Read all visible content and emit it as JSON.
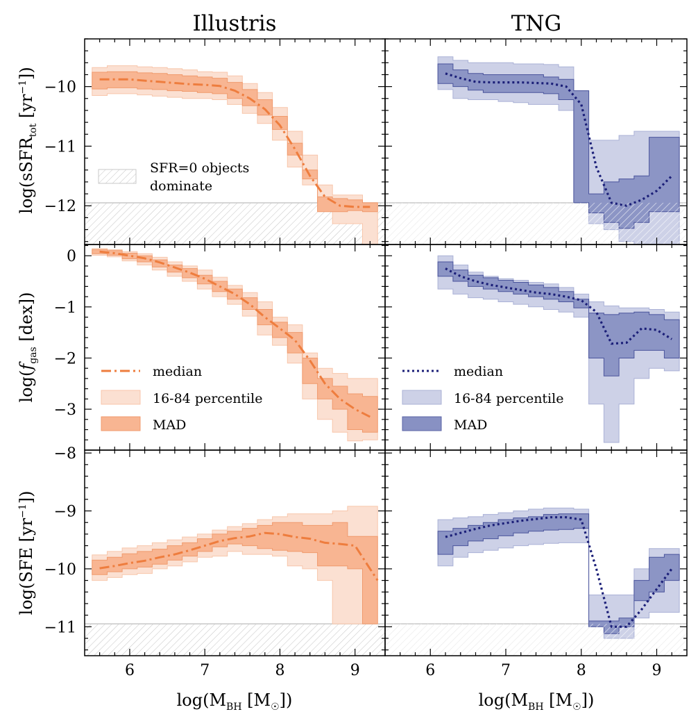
{
  "colors": {
    "illustris_line": "#ee7d3e",
    "illustris_band": "#fbe0d2",
    "illustris_mad": "#f8b592",
    "tng_line": "#1b1f78",
    "tng_band": "#cdd1e7",
    "tng_mad": "#8891c3",
    "hatch": "#c8c8c8"
  },
  "columns": {
    "left_title": "Illustris",
    "right_title": "TNG"
  },
  "axes": {
    "xlim": [
      5.4,
      9.4
    ],
    "xticks": [
      "6",
      "7",
      "8",
      "9"
    ],
    "xlabel": {
      "main": "log(M",
      "sub": "BH",
      "rest": " [M",
      "sun": "☉",
      "end": "])"
    },
    "row1": {
      "ylim": [
        -12.65,
        -9.2
      ],
      "yticks": [
        "−10",
        "−11",
        "−12"
      ],
      "ylabel": {
        "main": "log(sSFR",
        "sub": "tot",
        "rest": " [yr",
        "sup": "−1",
        "end": "])"
      }
    },
    "row2": {
      "ylim": [
        -3.8,
        0.22
      ],
      "yticks": [
        "0",
        "−1",
        "−2",
        "−3"
      ],
      "ylabel": {
        "main": "log(",
        "italic": "f",
        "sub": "gas",
        "rest": " [dex])"
      }
    },
    "row3": {
      "ylim": [
        -11.5,
        -7.95
      ],
      "yticks": [
        "−8",
        "−9",
        "−10",
        "−11"
      ],
      "ylabel": {
        "main": "log(SFE [yr",
        "sup": "−1",
        "end": "])"
      }
    }
  },
  "legends": {
    "hatch_label_line1": "SFR=0 objects",
    "hatch_label_line2": "dominate",
    "median": "median",
    "percentile": "16-84 percentile",
    "mad": "MAD"
  },
  "chart_data": [
    {
      "type": "area",
      "panel": "Illustris sSFR",
      "row": "row1",
      "side": "left",
      "style": "dashdot",
      "hatch_below": -11.95,
      "bins": [
        5.5,
        5.7,
        5.9,
        6.1,
        6.3,
        6.5,
        6.7,
        6.9,
        7.1,
        7.3,
        7.5,
        7.7,
        7.9,
        8.1,
        8.3,
        8.5,
        8.7,
        8.9,
        9.1,
        9.3
      ],
      "p16": [
        -10.15,
        -10.12,
        -10.12,
        -10.14,
        -10.16,
        -10.18,
        -10.2,
        -10.2,
        -10.22,
        -10.3,
        -10.45,
        -10.62,
        -10.9,
        -11.35,
        -11.65,
        -11.95,
        -12.3,
        -12.3,
        -12.65
      ],
      "p84": [
        -9.68,
        -9.65,
        -9.65,
        -9.67,
        -9.68,
        -9.7,
        -9.72,
        -9.75,
        -9.76,
        -9.82,
        -9.95,
        -10.1,
        -10.35,
        -10.75,
        -11.15,
        -11.65,
        -11.82,
        -11.82,
        -11.95
      ],
      "mad_lo": [
        -10.04,
        -10.02,
        -10.02,
        -10.04,
        -10.05,
        -10.07,
        -10.08,
        -10.1,
        -10.12,
        -10.2,
        -10.32,
        -10.48,
        -10.72,
        -11.15,
        -11.55,
        -12.1,
        -12.1,
        -12.08,
        -12.1
      ],
      "mad_hi": [
        -9.76,
        -9.75,
        -9.75,
        -9.77,
        -9.78,
        -9.8,
        -9.82,
        -9.84,
        -9.86,
        -9.93,
        -10.05,
        -10.22,
        -10.5,
        -10.95,
        -11.4,
        -11.85,
        -11.88,
        -11.9,
        -11.95
      ],
      "median_x": [
        5.6,
        5.8,
        6.0,
        6.2,
        6.4,
        6.6,
        6.8,
        7.0,
        7.2,
        7.4,
        7.6,
        7.8,
        8.0,
        8.2,
        8.4,
        8.6,
        8.8,
        9.0,
        9.2
      ],
      "median_y": [
        -9.88,
        -9.88,
        -9.88,
        -9.9,
        -9.92,
        -9.94,
        -9.96,
        -9.97,
        -9.99,
        -10.07,
        -10.2,
        -10.38,
        -10.65,
        -11.05,
        -11.5,
        -11.85,
        -12.0,
        -12.02,
        -12.02
      ]
    },
    {
      "type": "area",
      "panel": "TNG sSFR",
      "row": "row1",
      "side": "right",
      "style": "dotted",
      "hatch_below": -11.95,
      "bins": [
        6.1,
        6.3,
        6.5,
        6.7,
        6.9,
        7.1,
        7.3,
        7.5,
        7.7,
        7.9,
        8.1,
        8.3,
        8.5,
        8.7,
        8.9,
        9.1,
        9.3
      ],
      "p16": [
        -10.05,
        -10.2,
        -10.22,
        -10.22,
        -10.25,
        -10.27,
        -10.3,
        -10.3,
        -10.4,
        -11.95,
        -12.3,
        -12.4,
        -12.6,
        -12.72,
        -12.72,
        -12.72
      ],
      "p84": [
        -9.5,
        -9.56,
        -9.6,
        -9.6,
        -9.6,
        -9.62,
        -9.62,
        -9.63,
        -9.67,
        -10.07,
        -10.9,
        -10.9,
        -10.82,
        -10.75,
        -10.75,
        -10.75
      ],
      "mad_lo": [
        -9.95,
        -10.0,
        -10.06,
        -10.1,
        -10.1,
        -10.1,
        -10.1,
        -10.12,
        -10.22,
        -11.95,
        -12.12,
        -12.28,
        -12.38,
        -12.28,
        -12.1,
        -12.1
      ],
      "mad_hi": [
        -9.62,
        -9.72,
        -9.78,
        -9.8,
        -9.8,
        -9.8,
        -9.8,
        -9.84,
        -9.88,
        -10.07,
        -11.8,
        -11.6,
        -11.55,
        -11.5,
        -10.85,
        -10.85
      ],
      "median_x": [
        6.2,
        6.4,
        6.6,
        6.8,
        7.0,
        7.2,
        7.4,
        7.6,
        7.8,
        8.0,
        8.2,
        8.4,
        8.6,
        8.8,
        9.0,
        9.2
      ],
      "median_y": [
        -9.78,
        -9.86,
        -9.92,
        -9.93,
        -9.93,
        -9.93,
        -9.94,
        -9.95,
        -10.0,
        -10.3,
        -11.35,
        -11.95,
        -12.0,
        -11.9,
        -11.75,
        -11.5
      ]
    },
    {
      "type": "area",
      "panel": "Illustris f_gas",
      "row": "row2",
      "side": "left",
      "style": "dashdot",
      "bins": [
        5.5,
        5.7,
        5.9,
        6.1,
        6.3,
        6.5,
        6.7,
        6.9,
        7.1,
        7.3,
        7.5,
        7.7,
        7.9,
        8.1,
        8.3,
        8.5,
        8.7,
        8.9,
        9.1,
        9.3
      ],
      "p16": [
        0.01,
        -0.02,
        -0.1,
        -0.18,
        -0.28,
        -0.4,
        -0.5,
        -0.65,
        -0.8,
        -0.95,
        -1.18,
        -1.55,
        -1.75,
        -2.1,
        -2.8,
        -3.2,
        -3.45,
        -3.62,
        -3.6
      ],
      "p84": [
        0.14,
        0.12,
        0.08,
        0.04,
        -0.03,
        -0.12,
        -0.2,
        -0.28,
        -0.42,
        -0.58,
        -0.72,
        -0.9,
        -1.2,
        -1.35,
        -1.9,
        -2.2,
        -2.3,
        -2.4,
        -2.4
      ],
      "mad_lo": [
        0.04,
        0.01,
        -0.06,
        -0.12,
        -0.22,
        -0.32,
        -0.43,
        -0.55,
        -0.7,
        -0.85,
        -1.05,
        -1.35,
        -1.6,
        -1.9,
        -2.5,
        -2.8,
        -3.0,
        -3.4,
        -3.45
      ],
      "mad_hi": [
        0.12,
        0.1,
        0.05,
        0.0,
        -0.08,
        -0.18,
        -0.25,
        -0.38,
        -0.5,
        -0.65,
        -0.82,
        -1.05,
        -1.3,
        -1.5,
        -2.0,
        -2.4,
        -2.55,
        -2.7,
        -2.75
      ],
      "median_x": [
        5.6,
        5.8,
        6.0,
        6.2,
        6.4,
        6.6,
        6.8,
        7.0,
        7.2,
        7.4,
        7.6,
        7.8,
        8.0,
        8.2,
        8.4,
        8.6,
        8.8,
        9.0,
        9.2
      ],
      "median_y": [
        0.08,
        0.05,
        0.0,
        -0.05,
        -0.13,
        -0.23,
        -0.33,
        -0.45,
        -0.6,
        -0.75,
        -0.95,
        -1.2,
        -1.42,
        -1.65,
        -2.05,
        -2.5,
        -2.8,
        -3.0,
        -3.15
      ]
    },
    {
      "type": "area",
      "panel": "TNG f_gas",
      "row": "row2",
      "side": "right",
      "style": "dotted",
      "bins": [
        6.1,
        6.3,
        6.5,
        6.7,
        6.9,
        7.1,
        7.3,
        7.5,
        7.7,
        7.9,
        8.1,
        8.3,
        8.5,
        8.7,
        8.9,
        9.1,
        9.3
      ],
      "p16": [
        -0.65,
        -0.75,
        -0.82,
        -0.85,
        -0.9,
        -0.95,
        -1.0,
        -1.05,
        -1.1,
        -1.2,
        -2.9,
        -3.65,
        -2.9,
        -2.4,
        -2.2,
        -2.25
      ],
      "p84": [
        0.0,
        -0.18,
        -0.32,
        -0.4,
        -0.45,
        -0.48,
        -0.52,
        -0.55,
        -0.62,
        -0.75,
        -0.9,
        -0.98,
        -1.02,
        -1.02,
        -1.05,
        -1.1
      ],
      "mad_lo": [
        -0.4,
        -0.5,
        -0.6,
        -0.65,
        -0.7,
        -0.75,
        -0.8,
        -0.85,
        -0.9,
        -1.02,
        -2.0,
        -2.35,
        -2.0,
        -1.85,
        -1.85,
        -2.0
      ],
      "mad_hi": [
        -0.12,
        -0.28,
        -0.38,
        -0.43,
        -0.48,
        -0.52,
        -0.57,
        -0.62,
        -0.7,
        -0.85,
        -1.12,
        -1.15,
        -1.12,
        -1.1,
        -1.15,
        -1.25
      ],
      "median_x": [
        6.2,
        6.4,
        6.6,
        6.8,
        7.0,
        7.2,
        7.4,
        7.6,
        7.8,
        8.0,
        8.2,
        8.4,
        8.6,
        8.8,
        9.0,
        9.2
      ],
      "median_y": [
        -0.25,
        -0.4,
        -0.5,
        -0.57,
        -0.62,
        -0.67,
        -0.72,
        -0.75,
        -0.8,
        -0.87,
        -1.1,
        -1.72,
        -1.7,
        -1.42,
        -1.45,
        -1.63
      ]
    },
    {
      "type": "area",
      "panel": "Illustris SFE",
      "row": "row3",
      "side": "left",
      "style": "dashdot",
      "hatch_below": -10.95,
      "bins": [
        5.5,
        5.7,
        5.9,
        6.1,
        6.3,
        6.5,
        6.7,
        6.9,
        7.1,
        7.3,
        7.5,
        7.7,
        7.9,
        8.1,
        8.3,
        8.5,
        8.7,
        8.9,
        9.1,
        9.3
      ],
      "p16": [
        -10.2,
        -10.15,
        -10.1,
        -10.08,
        -10.0,
        -9.95,
        -9.88,
        -9.8,
        -9.78,
        -9.7,
        -9.75,
        -9.75,
        -9.78,
        -9.95,
        -10.0,
        -10.2,
        -10.95,
        -10.95,
        -10.95
      ],
      "p84": [
        -9.76,
        -9.7,
        -9.64,
        -9.6,
        -9.55,
        -9.5,
        -9.45,
        -9.4,
        -9.33,
        -9.27,
        -9.22,
        -9.15,
        -9.1,
        -9.05,
        -9.05,
        -9.05,
        -9.0,
        -8.92,
        -8.92
      ],
      "mad_lo": [
        -10.1,
        -10.05,
        -10.0,
        -9.97,
        -9.92,
        -9.85,
        -9.78,
        -9.7,
        -9.62,
        -9.57,
        -9.6,
        -9.65,
        -9.68,
        -9.7,
        -9.72,
        -9.95,
        -9.95,
        -10.0,
        -10.95
      ],
      "mad_hi": [
        -9.85,
        -9.8,
        -9.74,
        -9.7,
        -9.66,
        -9.6,
        -9.55,
        -9.48,
        -9.4,
        -9.35,
        -9.3,
        -9.25,
        -9.2,
        -9.2,
        -9.25,
        -9.25,
        -9.2,
        -9.44,
        -9.44
      ],
      "median_x": [
        5.6,
        5.8,
        6.0,
        6.2,
        6.4,
        6.6,
        6.8,
        7.0,
        7.2,
        7.4,
        7.6,
        7.8,
        8.0,
        8.2,
        8.4,
        8.6,
        8.8,
        9.0,
        9.2,
        9.3
      ],
      "median_y": [
        -9.99,
        -9.95,
        -9.9,
        -9.86,
        -9.8,
        -9.75,
        -9.68,
        -9.6,
        -9.52,
        -9.47,
        -9.44,
        -9.38,
        -9.4,
        -9.45,
        -9.48,
        -9.55,
        -9.57,
        -9.6,
        -10.0,
        -10.2
      ]
    },
    {
      "type": "area",
      "panel": "TNG SFE",
      "row": "row3",
      "side": "right",
      "style": "dotted",
      "hatch_below": -10.95,
      "bins": [
        6.1,
        6.3,
        6.5,
        6.7,
        6.9,
        7.1,
        7.3,
        7.5,
        7.7,
        7.9,
        8.1,
        8.3,
        8.5,
        8.7,
        8.9,
        9.1,
        9.3
      ],
      "p16": [
        -9.95,
        -9.8,
        -9.72,
        -9.68,
        -9.64,
        -9.6,
        -9.58,
        -9.56,
        -9.55,
        -9.55,
        -11.0,
        -11.2,
        -11.2,
        -10.85,
        -10.75,
        -10.75
      ],
      "p84": [
        -9.15,
        -9.12,
        -9.1,
        -9.06,
        -9.03,
        -9.0,
        -8.97,
        -8.95,
        -8.95,
        -8.97,
        -10.45,
        -10.45,
        -10.45,
        -10.0,
        -9.65,
        -9.65
      ],
      "mad_lo": [
        -9.75,
        -9.6,
        -9.52,
        -9.48,
        -9.43,
        -9.38,
        -9.35,
        -9.33,
        -9.32,
        -9.3,
        -11.0,
        -11.12,
        -11.0,
        -10.55,
        -10.4,
        -10.2
      ],
      "mad_hi": [
        -9.35,
        -9.3,
        -9.25,
        -9.2,
        -9.15,
        -9.12,
        -9.1,
        -9.06,
        -9.05,
        -9.05,
        -10.9,
        -10.9,
        -10.85,
        -10.2,
        -9.8,
        -9.75
      ],
      "median_x": [
        6.2,
        6.4,
        6.6,
        6.8,
        7.0,
        7.2,
        7.4,
        7.6,
        7.8,
        8.0,
        8.2,
        8.4,
        8.6,
        8.8,
        9.0,
        9.2
      ],
      "median_y": [
        -9.45,
        -9.38,
        -9.31,
        -9.25,
        -9.21,
        -9.17,
        -9.14,
        -9.11,
        -9.11,
        -9.15,
        -10.0,
        -11.0,
        -11.0,
        -10.7,
        -10.35,
        -10.0
      ]
    }
  ]
}
